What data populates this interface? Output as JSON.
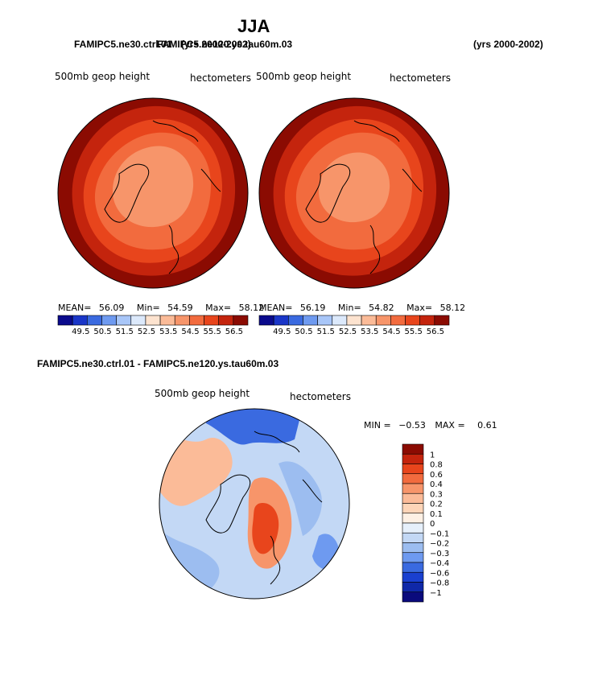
{
  "page": {
    "title": "JJA",
    "case1": "FAMIPC5.ne30.ctrl.01",
    "case2": "FAMIPC5.ne120.ys.tau60m.03",
    "years1": "(yrs 2000-2002)",
    "years2": "(yrs 2000-2002)",
    "diff_title": "FAMIPC5.ne30.ctrl.01 - FAMIPC5.ne120.ys.tau60m.03"
  },
  "chart_data": [
    {
      "type": "heatmap",
      "projection": "north-polar-stereographic",
      "variable": "500mb geop height",
      "units": "hectometers",
      "stats": {
        "mean_label": "MEAN=",
        "mean": "56.09",
        "min_label": "Min=",
        "min": "54.59",
        "max_label": "Max=",
        "max": "58.12"
      },
      "colorbar_levels": [
        "49.5",
        "50.5",
        "51.5",
        "52.5",
        "53.5",
        "54.5",
        "55.5",
        "56.5"
      ],
      "colors": [
        "#0a0a8c",
        "#1a36c8",
        "#3a6ae0",
        "#6e9af0",
        "#a8c6f8",
        "#dce9fb",
        "#fde3cf",
        "#fbbb98",
        "#f7956a",
        "#f26b3e",
        "#e8451c",
        "#c4240d",
        "#8b0b02"
      ]
    },
    {
      "type": "heatmap",
      "projection": "north-polar-stereographic",
      "variable": "500mb geop height",
      "units": "hectometers",
      "stats": {
        "mean_label": "MEAN=",
        "mean": "56.19",
        "min_label": "Min=",
        "min": "54.82",
        "max_label": "Max=",
        "max": "58.12"
      },
      "colorbar_levels": [
        "49.5",
        "50.5",
        "51.5",
        "52.5",
        "53.5",
        "54.5",
        "55.5",
        "56.5"
      ],
      "colors": [
        "#0a0a8c",
        "#1a36c8",
        "#3a6ae0",
        "#6e9af0",
        "#a8c6f8",
        "#dce9fb",
        "#fde3cf",
        "#fbbb98",
        "#f7956a",
        "#f26b3e",
        "#e8451c",
        "#c4240d",
        "#8b0b02"
      ]
    },
    {
      "type": "heatmap",
      "projection": "north-polar-stereographic",
      "variable": "500mb geop height",
      "units": "hectometers",
      "stats": {
        "min_label": "MIN =",
        "min": "−0.53",
        "max_label": "MAX =",
        "max": "0.61"
      },
      "colorbar_levels": [
        "1",
        "0.8",
        "0.6",
        "0.4",
        "0.3",
        "0.2",
        "0.1",
        "0",
        "−0.1",
        "−0.2",
        "−0.3",
        "−0.4",
        "−0.6",
        "−0.8",
        "−1"
      ],
      "colors": [
        "#8b0b02",
        "#c4240d",
        "#e8451c",
        "#f26b3e",
        "#f7956a",
        "#fbbb98",
        "#fdd5b8",
        "#fdf0e4",
        "#e6f0fb",
        "#c3d8f5",
        "#9cbdf0",
        "#6e9af0",
        "#3a6ae0",
        "#1a40d0",
        "#0f28a8",
        "#0a0a7c"
      ]
    }
  ]
}
